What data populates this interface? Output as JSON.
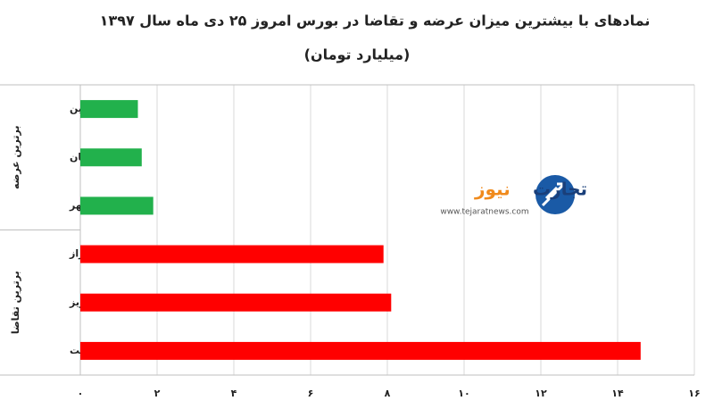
{
  "chart_data": {
    "type": "bar",
    "orientation": "horizontal",
    "title": "نمادهای با بیشترین میزان عرضه و تقاضا در بورس امروز ۲۵ دی ماه سال ۱۳۹۷",
    "subtitle": "(میلیارد تومان)",
    "group_labels": [
      "برترین عرضه",
      "برترین تقاضا"
    ],
    "categories": [
      "قشرین",
      "کیان",
      "خمهر",
      "شیراز",
      "شبریز",
      "وپست"
    ],
    "values": [
      1.5,
      1.6,
      1.9,
      7.9,
      8.1,
      14.6
    ],
    "colors": [
      "#22b14c",
      "#22b14c",
      "#22b14c",
      "#ff0000",
      "#ff0000",
      "#ff0000"
    ],
    "xlim": [
      0,
      16
    ],
    "xticks": [
      {
        "value": 0,
        "label": "۰"
      },
      {
        "value": 2,
        "label": "۲"
      },
      {
        "value": 4,
        "label": "۴"
      },
      {
        "value": 6,
        "label": "۶"
      },
      {
        "value": 8,
        "label": "۸"
      },
      {
        "value": 10,
        "label": "۱۰"
      },
      {
        "value": 12,
        "label": "۱۲"
      },
      {
        "value": 14,
        "label": "۱۴"
      },
      {
        "value": 16,
        "label": "۱۶"
      }
    ],
    "grid": true
  },
  "logo": {
    "word1": "تجارت",
    "word2": "نیوز",
    "url": "www.tejaratnews.com"
  }
}
